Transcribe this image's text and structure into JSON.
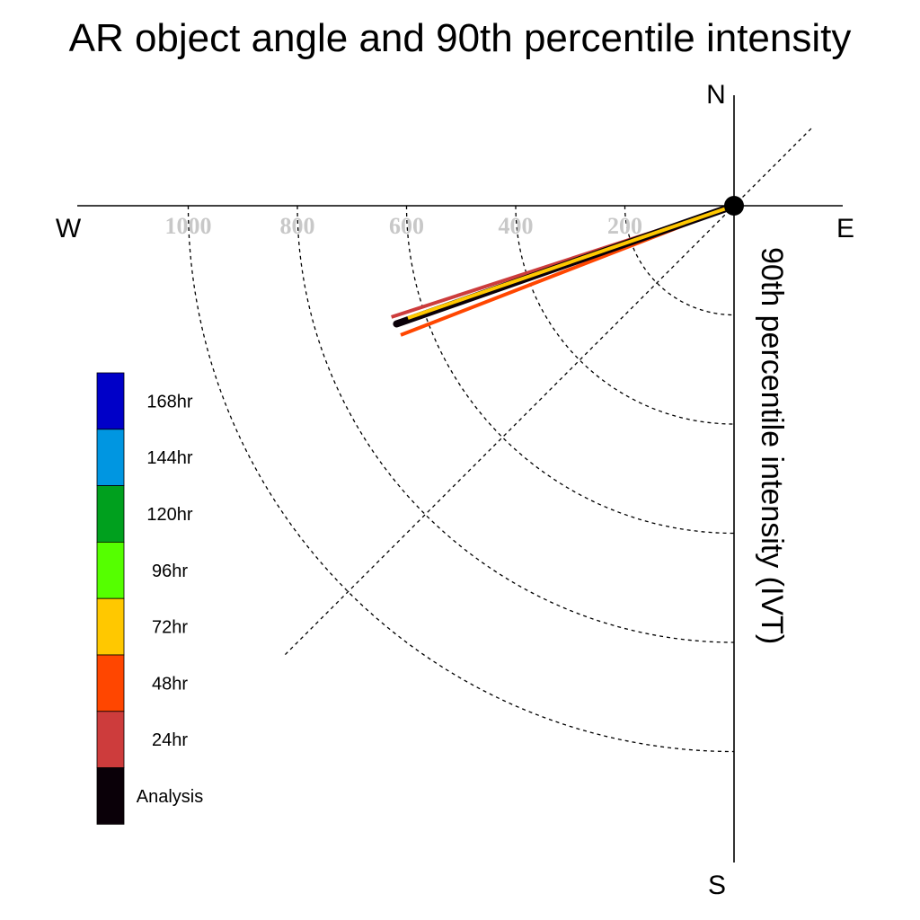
{
  "chart_data": {
    "type": "polar-vector",
    "title": "AR object angle and 90th percentile intensity",
    "ylabel": "90th percentile intensity (IVT)",
    "compass": {
      "north": "N",
      "south": "S",
      "east": "E",
      "west": "W"
    },
    "radial_ticks": [
      200,
      400,
      600,
      800,
      1000
    ],
    "radial_tick_labels": [
      "200",
      "400",
      "600",
      "800",
      "1000"
    ],
    "rlim": [
      0,
      1000
    ],
    "angle_range_deg": [
      180,
      270
    ],
    "legend": [
      {
        "label": "168hr",
        "color": "#0000c8"
      },
      {
        "label": "144hr",
        "color": "#0096e1"
      },
      {
        "label": "120hr",
        "color": "#00a01e"
      },
      {
        "label": "96hr",
        "color": "#55ff00"
      },
      {
        "label": "72hr",
        "color": "#ffc800"
      },
      {
        "label": "48hr",
        "color": "#ff4600"
      },
      {
        "label": "24hr",
        "color": "#cd3c3c"
      },
      {
        "label": "Analysis",
        "color": "#0a0008"
      }
    ],
    "series": [
      {
        "name": "24hr",
        "color": "#cd3c3c",
        "angle_deg": 198.0,
        "intensity": 660
      },
      {
        "name": "48hr",
        "color": "#ff4600",
        "angle_deg": 201.2,
        "intensity": 655
      },
      {
        "name": "Analysis",
        "color": "#0a0008",
        "angle_deg": 199.3,
        "intensity": 655
      },
      {
        "name": "72hr",
        "color": "#ffc800",
        "angle_deg": 199.0,
        "intensity": 632
      }
    ]
  }
}
